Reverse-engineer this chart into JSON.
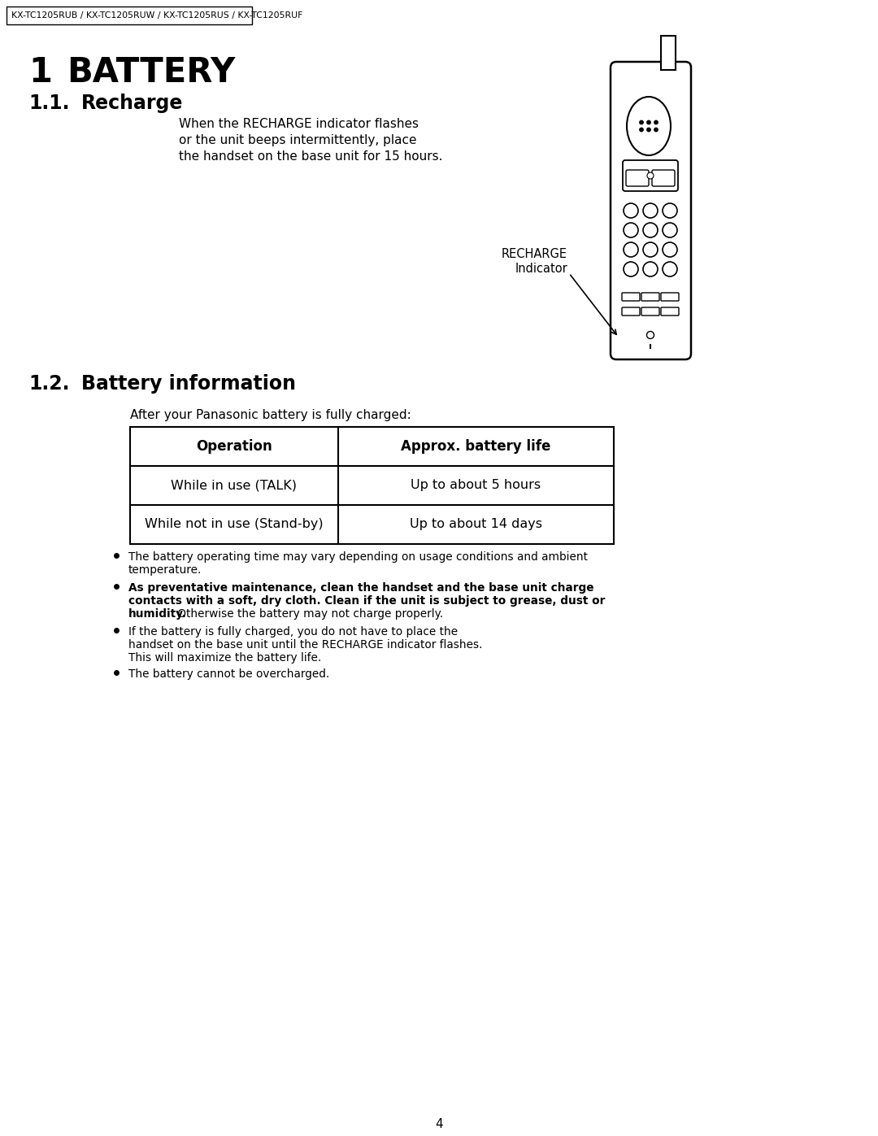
{
  "page_number": "4",
  "header_text": "KX-TC1205RUB / KX-TC1205RUW / KX-TC1205RUS / KX-TC1205RUF",
  "section1_number": "1",
  "section1_title": "BATTERY",
  "section1_1_number": "1.1.",
  "section1_1_title": "Recharge",
  "recharge_text_line1": "When the RECHARGE indicator flashes",
  "recharge_text_line2": "or the unit beeps intermittently, place",
  "recharge_text_line3": "the handset on the base unit for 15 hours.",
  "recharge_label1": "RECHARGE",
  "recharge_label2": "Indicator",
  "section1_2_number": "1.2.",
  "section1_2_title": "Battery information",
  "table_intro": "After your Panasonic battery is fully charged:",
  "table_header_col1": "Operation",
  "table_header_col2": "Approx. battery life",
  "table_row1_col1": "While in use (TALK)",
  "table_row1_col2": "Up to about 5 hours",
  "table_row2_col1": "While not in use (Stand-by)",
  "table_row2_col2": "Up to about 14 days",
  "bullet1_line1": "The battery operating time may vary depending on usage conditions and ambient",
  "bullet1_line2": "temperature.",
  "bullet2_bold_line1": "As preventative maintenance, clean the handset and the base unit charge",
  "bullet2_bold_line2": "contacts with a soft, dry cloth. Clean if the unit is subject to grease, dust or",
  "bullet2_bold_line3": "humidity.",
  "bullet2_normal": " Otherwise the battery may not charge properly.",
  "bullet3_line1": "If the battery is fully charged, you do not have to place the",
  "bullet3_line2": "handset on the base unit until the RECHARGE indicator flashes.",
  "bullet3_line3": "This will maximize the battery life.",
  "bullet4": "The battery cannot be overcharged.",
  "bg_color": "#ffffff",
  "text_color": "#000000"
}
